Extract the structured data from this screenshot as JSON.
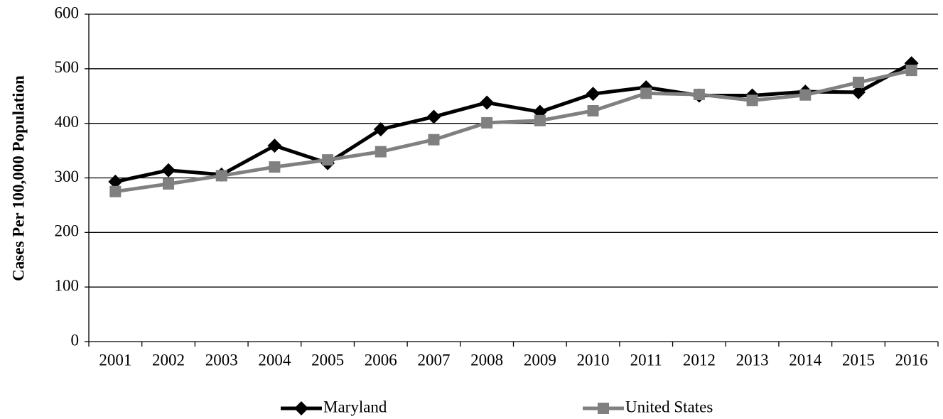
{
  "chart_data": {
    "type": "line",
    "y_label": "Cases Per 100,000 Population",
    "categories": [
      "2001",
      "2002",
      "2003",
      "2004",
      "2005",
      "2006",
      "2007",
      "2008",
      "2009",
      "2010",
      "2011",
      "2012",
      "2013",
      "2014",
      "2015",
      "2016"
    ],
    "series": [
      {
        "name": "Maryland",
        "color": "#000000",
        "marker": "diamond",
        "values": [
          293,
          314,
          306,
          359,
          327,
          389,
          412,
          438,
          421,
          454,
          466,
          451,
          451,
          458,
          457,
          510
        ]
      },
      {
        "name": "United States",
        "color": "#808080",
        "marker": "square",
        "values": [
          275,
          289,
          304,
          320,
          333,
          348,
          370,
          401,
          405,
          423,
          455,
          453,
          442,
          452,
          475,
          497
        ]
      }
    ],
    "ylim": [
      0,
      600
    ],
    "yticks": [
      0,
      100,
      200,
      300,
      400,
      500,
      600
    ],
    "grid": true,
    "legend": "bottom"
  }
}
